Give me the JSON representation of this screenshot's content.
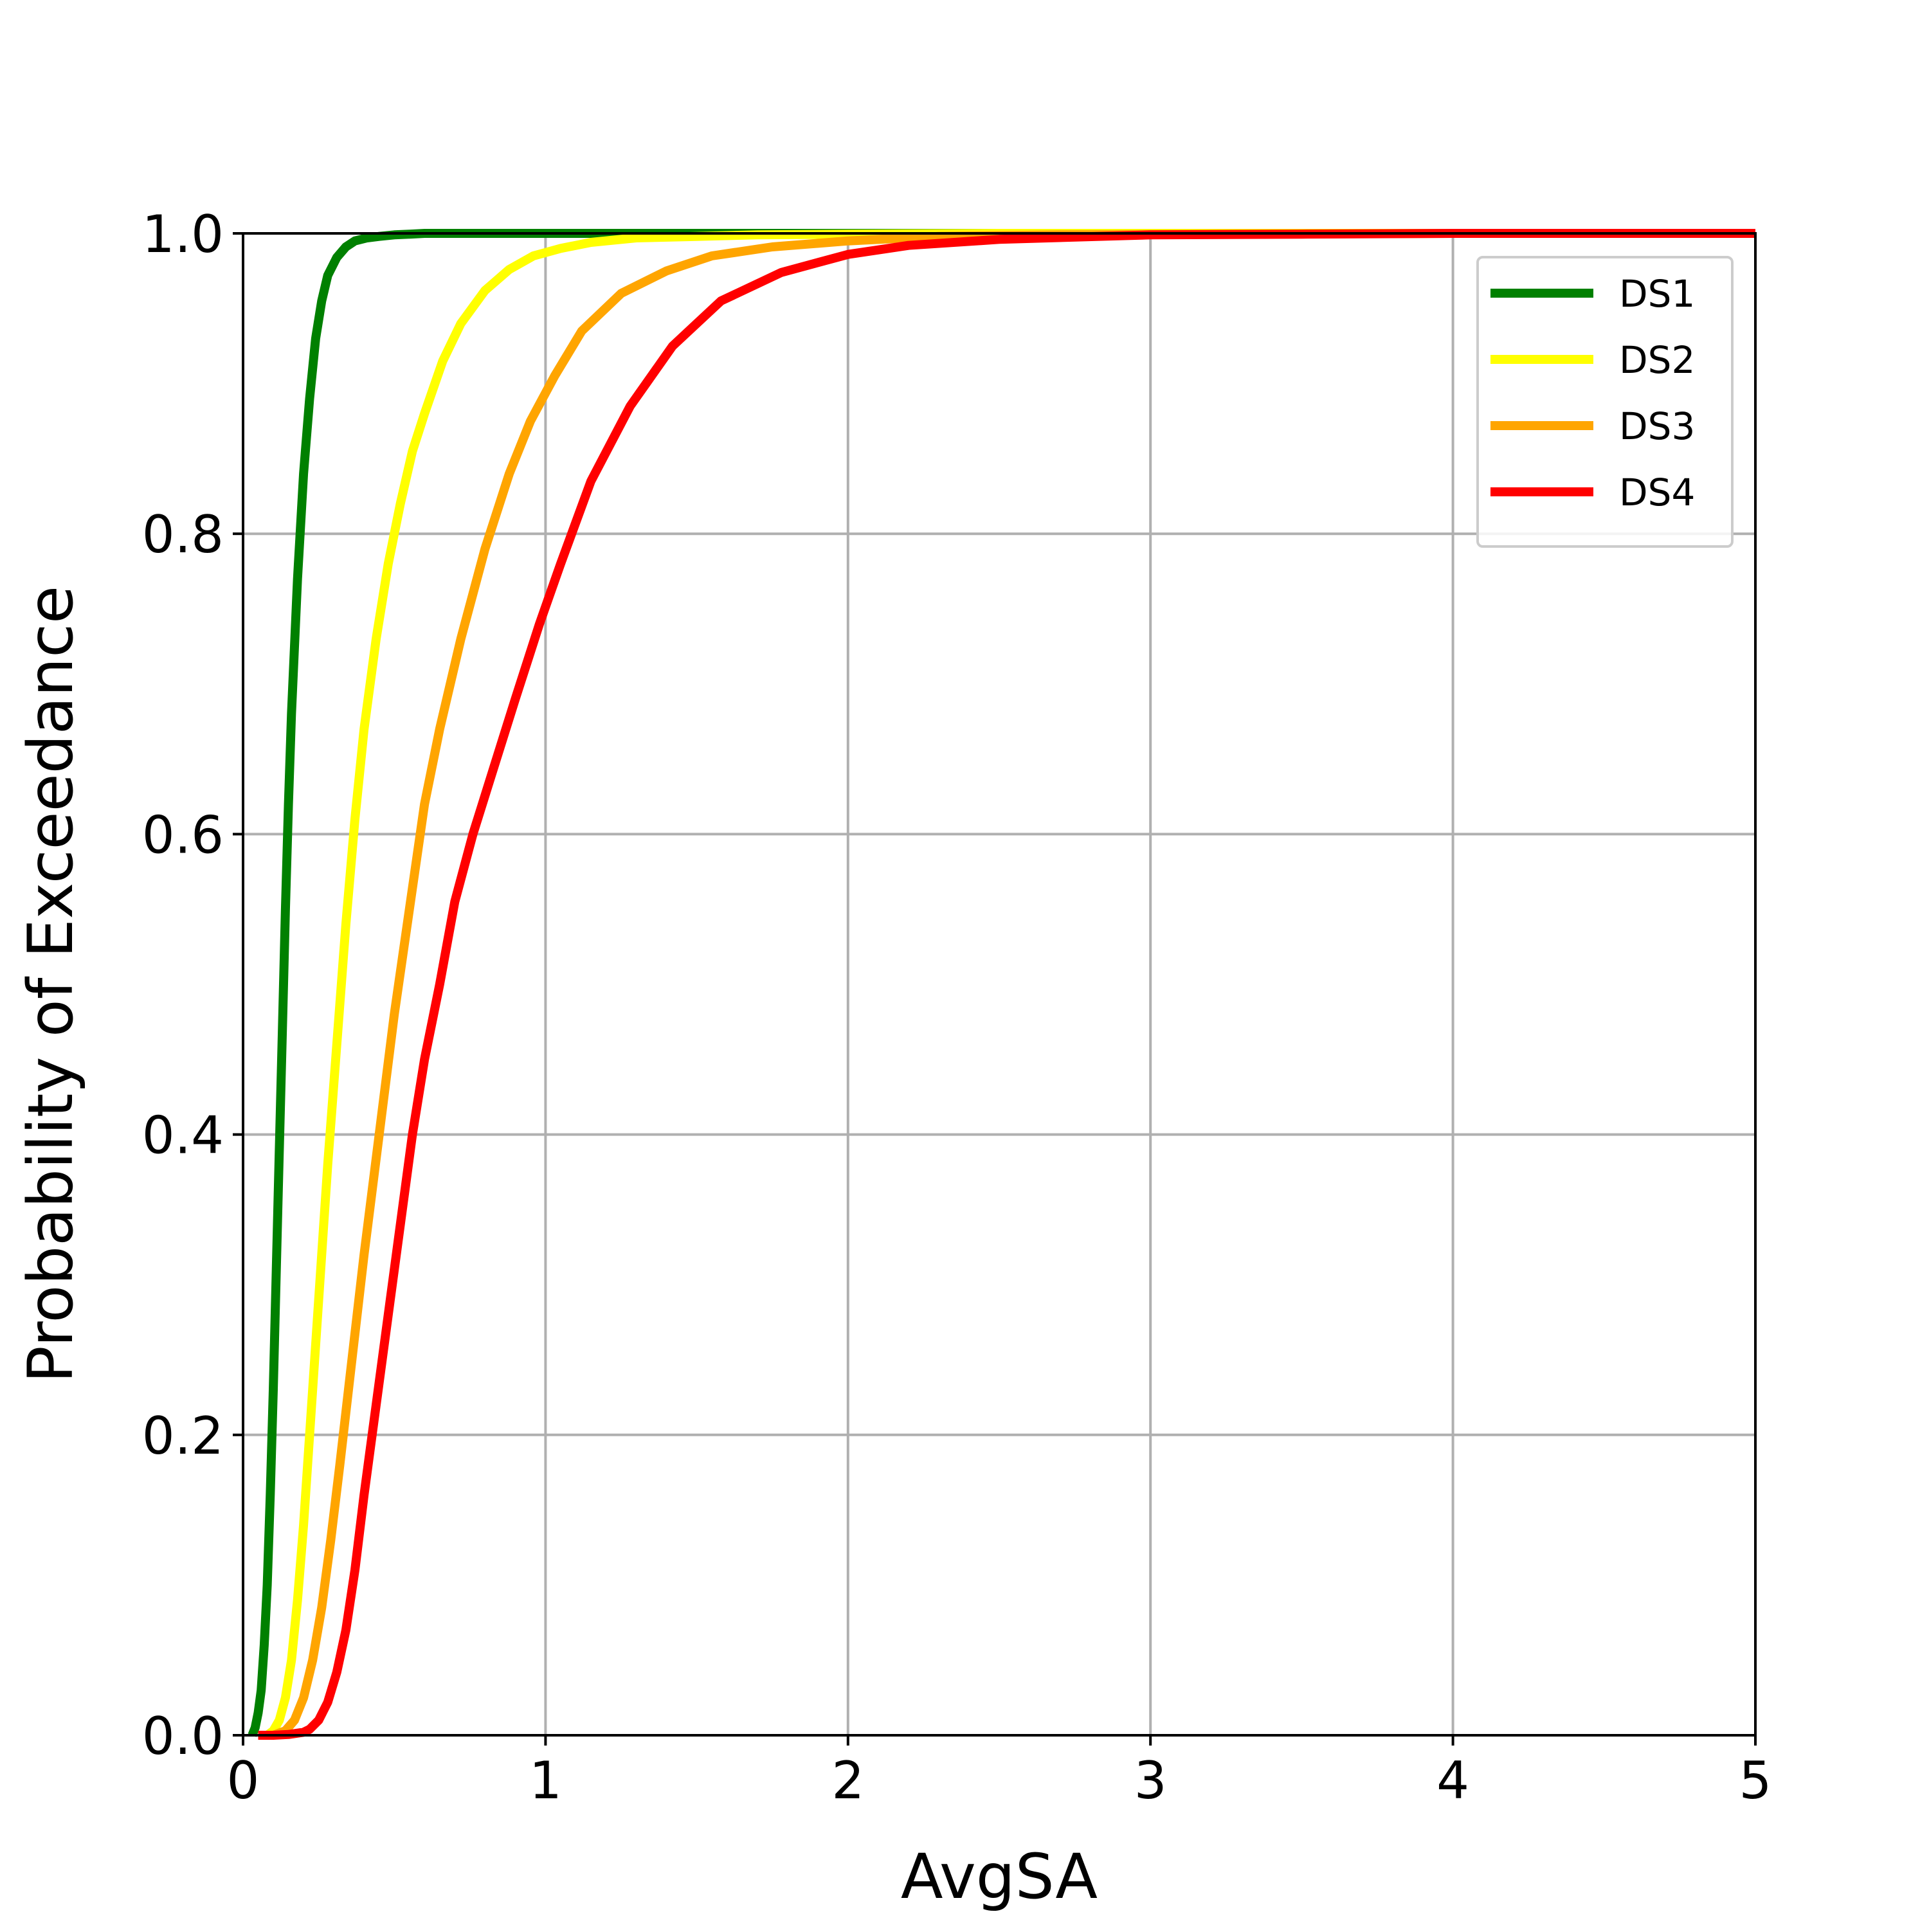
{
  "chart_data": {
    "type": "line",
    "title": "",
    "xlabel": "AvgSA",
    "ylabel": "Probability of Exceedance",
    "xlim": [
      0,
      5
    ],
    "ylim": [
      0,
      1.0
    ],
    "xticks": [
      0,
      1,
      2,
      3,
      4,
      5
    ],
    "xtick_labels": [
      "0",
      "1",
      "2",
      "3",
      "4",
      "5"
    ],
    "yticks": [
      0,
      0.2,
      0.4,
      0.6,
      0.8,
      1.0
    ],
    "ytick_labels": [
      "0.0",
      "0.2",
      "0.4",
      "0.6",
      "0.8",
      "1.0"
    ],
    "grid": true,
    "legend_position": "top-right",
    "series": [
      {
        "name": "DS1",
        "color": "#008000",
        "x": [
          0.03,
          0.04,
          0.05,
          0.06,
          0.07,
          0.08,
          0.09,
          0.1,
          0.11,
          0.12,
          0.13,
          0.14,
          0.15,
          0.16,
          0.18,
          0.2,
          0.22,
          0.24,
          0.26,
          0.28,
          0.31,
          0.34,
          0.37,
          0.41,
          0.45,
          0.5,
          0.55,
          0.6,
          0.7,
          0.8,
          1.0,
          1.5,
          2.0,
          5.0
        ],
        "y": [
          0.0,
          0.005,
          0.015,
          0.03,
          0.06,
          0.1,
          0.16,
          0.23,
          0.31,
          0.39,
          0.47,
          0.55,
          0.62,
          0.68,
          0.77,
          0.84,
          0.89,
          0.93,
          0.955,
          0.972,
          0.984,
          0.991,
          0.995,
          0.997,
          0.998,
          0.999,
          0.9995,
          1.0,
          1.0,
          1.0,
          1.0,
          1.0,
          1.0,
          1.0
        ]
      },
      {
        "name": "DS2",
        "color": "#FFFF00",
        "x": [
          0.08,
          0.1,
          0.12,
          0.14,
          0.16,
          0.18,
          0.2,
          0.22,
          0.25,
          0.28,
          0.31,
          0.34,
          0.37,
          0.4,
          0.44,
          0.48,
          0.52,
          0.56,
          0.6,
          0.66,
          0.72,
          0.8,
          0.88,
          0.96,
          1.05,
          1.15,
          1.3,
          1.5,
          1.7,
          2.0,
          2.5,
          3.0,
          5.0
        ],
        "y": [
          0.0,
          0.003,
          0.01,
          0.025,
          0.05,
          0.09,
          0.14,
          0.2,
          0.29,
          0.38,
          0.46,
          0.54,
          0.61,
          0.67,
          0.73,
          0.78,
          0.82,
          0.855,
          0.88,
          0.915,
          0.94,
          0.962,
          0.976,
          0.985,
          0.99,
          0.994,
          0.997,
          0.998,
          0.999,
          0.9995,
          1.0,
          1.0,
          1.0
        ]
      },
      {
        "name": "DS3",
        "color": "#FFA500",
        "x": [
          0.1,
          0.14,
          0.17,
          0.2,
          0.23,
          0.26,
          0.29,
          0.32,
          0.36,
          0.4,
          0.45,
          0.5,
          0.55,
          0.6,
          0.65,
          0.72,
          0.8,
          0.88,
          0.95,
          1.03,
          1.12,
          1.25,
          1.4,
          1.55,
          1.75,
          2.0,
          2.3,
          2.7,
          3.2,
          4.0,
          5.0
        ],
        "y": [
          0.0,
          0.003,
          0.01,
          0.025,
          0.05,
          0.085,
          0.13,
          0.18,
          0.25,
          0.32,
          0.4,
          0.48,
          0.55,
          0.62,
          0.67,
          0.73,
          0.79,
          0.84,
          0.875,
          0.905,
          0.935,
          0.96,
          0.975,
          0.985,
          0.991,
          0.995,
          0.998,
          0.999,
          0.9995,
          1.0,
          1.0
        ]
      },
      {
        "name": "DS4",
        "color": "#FF0000",
        "x": [
          0.05,
          0.1,
          0.15,
          0.2,
          0.22,
          0.25,
          0.28,
          0.31,
          0.34,
          0.37,
          0.4,
          0.44,
          0.48,
          0.52,
          0.56,
          0.6,
          0.65,
          0.7,
          0.76,
          0.83,
          0.9,
          0.98,
          1.05,
          1.15,
          1.28,
          1.42,
          1.58,
          1.78,
          2.0,
          2.2,
          2.5,
          3.0,
          3.5,
          4.0,
          5.0
        ],
        "y": [
          0.0,
          0.0,
          0.0005,
          0.002,
          0.004,
          0.01,
          0.022,
          0.042,
          0.07,
          0.11,
          0.16,
          0.22,
          0.28,
          0.34,
          0.4,
          0.45,
          0.5,
          0.555,
          0.6,
          0.645,
          0.69,
          0.74,
          0.78,
          0.835,
          0.885,
          0.925,
          0.955,
          0.974,
          0.986,
          0.992,
          0.996,
          0.999,
          0.9995,
          1.0,
          1.0
        ]
      }
    ]
  }
}
